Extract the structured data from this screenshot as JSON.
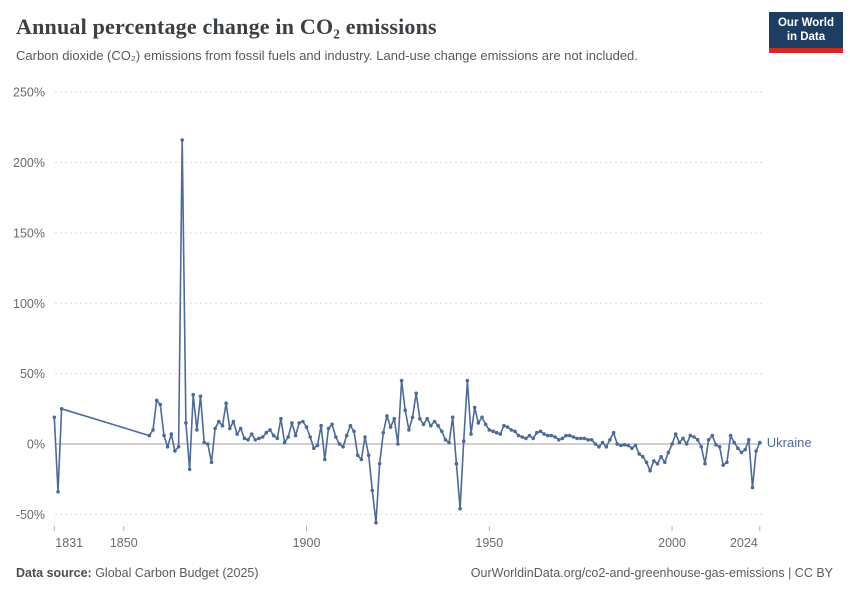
{
  "header": {
    "title": "Annual percentage change in CO₂ emissions",
    "subtitle": "Carbon dioxide (CO₂) emissions from fossil fuels and industry. Land-use change emissions are not included.",
    "logo": {
      "line1": "Our World",
      "line2": "in Data"
    }
  },
  "footer": {
    "source_label": "Data source:",
    "source_value": " Global Carbon Budget (2025)",
    "link": "OurWorldinData.org/co2-and-greenhouse-gas-emissions | CC BY"
  },
  "colors": {
    "line": "#4c6a9c",
    "entity_label": "#4c6a9c",
    "grid": "#dcdcdc",
    "zero_line": "#b3b3b3",
    "tick_text": "#6b6b6b",
    "logo_bg": "#1d3d63",
    "logo_stripe": "#cf2b24"
  },
  "chart_data": {
    "type": "line",
    "title": "Annual percentage change in CO₂ emissions",
    "subtitle": "Carbon dioxide (CO₂) emissions from fossil fuels and industry. Land-use change emissions are not included.",
    "xlabel": "",
    "ylabel": "",
    "xlim": [
      1831,
      2024
    ],
    "ylim": [
      -50,
      250
    ],
    "x_ticks": [
      1831,
      1850,
      1900,
      1950,
      2000,
      2024
    ],
    "y_ticks": [
      -50,
      0,
      50,
      100,
      150,
      200,
      250
    ],
    "y_tick_suffix": "%",
    "grid": "horizontal-dashed",
    "zero_line": true,
    "legend_position": "end-of-line-label",
    "series": [
      {
        "name": "Ukraine",
        "points": [
          [
            1831,
            19
          ],
          [
            1832,
            -34
          ],
          [
            1833,
            25
          ],
          [
            1857,
            6
          ],
          [
            1858,
            10
          ],
          [
            1859,
            31
          ],
          [
            1860,
            28
          ],
          [
            1861,
            6
          ],
          [
            1862,
            -2
          ],
          [
            1863,
            7
          ],
          [
            1864,
            -5
          ],
          [
            1865,
            -2
          ],
          [
            1866,
            216
          ],
          [
            1867,
            15
          ],
          [
            1868,
            -18
          ],
          [
            1869,
            35
          ],
          [
            1870,
            10
          ],
          [
            1871,
            34
          ],
          [
            1872,
            1
          ],
          [
            1873,
            0
          ],
          [
            1874,
            -13
          ],
          [
            1875,
            11
          ],
          [
            1876,
            16
          ],
          [
            1877,
            13
          ],
          [
            1878,
            29
          ],
          [
            1879,
            11
          ],
          [
            1880,
            16
          ],
          [
            1881,
            7
          ],
          [
            1882,
            11
          ],
          [
            1883,
            4
          ],
          [
            1884,
            3
          ],
          [
            1885,
            7
          ],
          [
            1886,
            3
          ],
          [
            1887,
            4
          ],
          [
            1888,
            5
          ],
          [
            1889,
            8
          ],
          [
            1890,
            10
          ],
          [
            1891,
            6
          ],
          [
            1892,
            4
          ],
          [
            1893,
            18
          ],
          [
            1894,
            1
          ],
          [
            1895,
            5
          ],
          [
            1896,
            15
          ],
          [
            1897,
            6
          ],
          [
            1898,
            15
          ],
          [
            1899,
            16
          ],
          [
            1900,
            12
          ],
          [
            1901,
            5
          ],
          [
            1902,
            -3
          ],
          [
            1903,
            -1
          ],
          [
            1904,
            13
          ],
          [
            1905,
            -11
          ],
          [
            1906,
            11
          ],
          [
            1907,
            14
          ],
          [
            1908,
            5
          ],
          [
            1909,
            0
          ],
          [
            1910,
            -2
          ],
          [
            1911,
            6
          ],
          [
            1912,
            13
          ],
          [
            1913,
            9
          ],
          [
            1914,
            -8
          ],
          [
            1915,
            -11
          ],
          [
            1916,
            5
          ],
          [
            1917,
            -8
          ],
          [
            1918,
            -33
          ],
          [
            1919,
            -56
          ],
          [
            1920,
            -14
          ],
          [
            1921,
            8
          ],
          [
            1922,
            20
          ],
          [
            1923,
            12
          ],
          [
            1924,
            18
          ],
          [
            1925,
            0
          ],
          [
            1926,
            45
          ],
          [
            1927,
            24
          ],
          [
            1928,
            10
          ],
          [
            1929,
            19
          ],
          [
            1930,
            36
          ],
          [
            1931,
            18
          ],
          [
            1932,
            14
          ],
          [
            1933,
            18
          ],
          [
            1934,
            13
          ],
          [
            1935,
            16
          ],
          [
            1936,
            13
          ],
          [
            1937,
            9
          ],
          [
            1938,
            3
          ],
          [
            1939,
            1
          ],
          [
            1940,
            19
          ],
          [
            1941,
            -14
          ],
          [
            1942,
            -46
          ],
          [
            1943,
            2
          ],
          [
            1944,
            45
          ],
          [
            1945,
            7
          ],
          [
            1946,
            26
          ],
          [
            1947,
            15
          ],
          [
            1948,
            19
          ],
          [
            1949,
            14
          ],
          [
            1950,
            10
          ],
          [
            1951,
            9
          ],
          [
            1952,
            8
          ],
          [
            1953,
            7
          ],
          [
            1954,
            13
          ],
          [
            1955,
            12
          ],
          [
            1956,
            10
          ],
          [
            1957,
            9
          ],
          [
            1958,
            6
          ],
          [
            1959,
            5
          ],
          [
            1960,
            4
          ],
          [
            1961,
            6
          ],
          [
            1962,
            4
          ],
          [
            1963,
            8
          ],
          [
            1964,
            9
          ],
          [
            1965,
            7
          ],
          [
            1966,
            6
          ],
          [
            1967,
            6
          ],
          [
            1968,
            5
          ],
          [
            1969,
            3
          ],
          [
            1970,
            4
          ],
          [
            1971,
            6
          ],
          [
            1972,
            6
          ],
          [
            1973,
            5
          ],
          [
            1974,
            4
          ],
          [
            1975,
            4
          ],
          [
            1976,
            4
          ],
          [
            1977,
            3
          ],
          [
            1978,
            3
          ],
          [
            1979,
            0
          ],
          [
            1980,
            -2
          ],
          [
            1981,
            1
          ],
          [
            1982,
            -2
          ],
          [
            1983,
            3
          ],
          [
            1984,
            8
          ],
          [
            1985,
            0
          ],
          [
            1986,
            -1
          ],
          [
            1987,
            -0.5
          ],
          [
            1988,
            -1
          ],
          [
            1989,
            -3
          ],
          [
            1990,
            -1
          ],
          [
            1991,
            -7
          ],
          [
            1992,
            -9
          ],
          [
            1993,
            -13
          ],
          [
            1994,
            -19
          ],
          [
            1995,
            -12
          ],
          [
            1996,
            -14
          ],
          [
            1997,
            -9
          ],
          [
            1998,
            -13
          ],
          [
            1999,
            -6
          ],
          [
            2000,
            0
          ],
          [
            2001,
            7
          ],
          [
            2002,
            1
          ],
          [
            2003,
            4
          ],
          [
            2004,
            0
          ],
          [
            2005,
            6
          ],
          [
            2006,
            5
          ],
          [
            2007,
            3
          ],
          [
            2008,
            -2
          ],
          [
            2009,
            -14
          ],
          [
            2010,
            3
          ],
          [
            2011,
            6
          ],
          [
            2012,
            -0.5
          ],
          [
            2013,
            -2
          ],
          [
            2014,
            -15
          ],
          [
            2015,
            -13
          ],
          [
            2016,
            6
          ],
          [
            2017,
            1
          ],
          [
            2018,
            -3
          ],
          [
            2019,
            -6
          ],
          [
            2020,
            -4
          ],
          [
            2021,
            3
          ],
          [
            2022,
            -31
          ],
          [
            2023,
            -5
          ],
          [
            2024,
            1
          ]
        ]
      }
    ]
  }
}
